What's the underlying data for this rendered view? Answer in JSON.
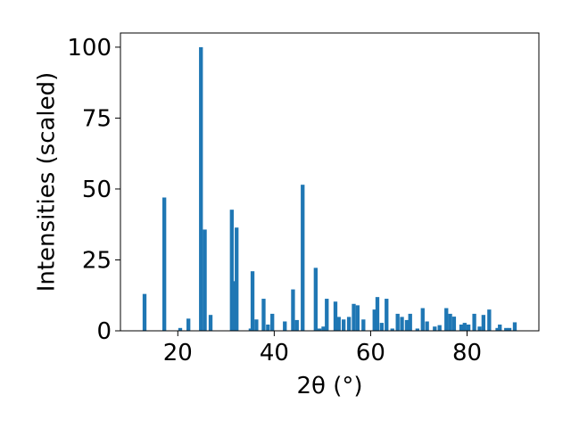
{
  "chart_data": {
    "type": "bar",
    "xlabel": "2θ (°)",
    "ylabel": "Intensities (scaled)",
    "xlim": [
      8.1,
      94.9
    ],
    "ylim": [
      0,
      105
    ],
    "xticks": [
      20,
      40,
      60,
      80
    ],
    "yticks": [
      0,
      25,
      50,
      75,
      100
    ],
    "bar_width_data": 0.8,
    "bar_color": "#1f77b4",
    "grid": false,
    "legend": "none",
    "x": [
      13.1,
      17.2,
      20.5,
      22.2,
      24.8,
      25.6,
      26.8,
      31.2,
      31.6,
      32.2,
      35.1,
      35.5,
      36.3,
      37.8,
      38.7,
      39.6,
      42.2,
      43.9,
      44.7,
      45.9,
      48.6,
      49.4,
      50.2,
      50.9,
      52.7,
      53.4,
      54.4,
      55.5,
      56.5,
      57.3,
      58.5,
      60.8,
      61.4,
      62.3,
      63.3,
      64.5,
      65.6,
      66.5,
      67.5,
      68.2,
      69.7,
      70.8,
      71.7,
      73.3,
      74.3,
      75.7,
      76.5,
      77.3,
      78.8,
      79.5,
      80.3,
      81.5,
      82.6,
      83.4,
      84.6,
      86.3,
      86.8,
      88.1,
      88.8,
      89.9
    ],
    "values": [
      13,
      47,
      1,
      4.3,
      100,
      35.7,
      5.6,
      42.7,
      17.5,
      36.4,
      0.8,
      21,
      4,
      11.3,
      2.2,
      6,
      3.3,
      14.6,
      3.8,
      51.5,
      22.2,
      0.8,
      1.5,
      11.3,
      10.3,
      4.9,
      4,
      4.9,
      9.5,
      9,
      4,
      7.5,
      11.9,
      2.8,
      11.3,
      0.8,
      6,
      4.9,
      3.8,
      6,
      0.8,
      8,
      3.3,
      1.5,
      2,
      8,
      6,
      5,
      2.2,
      2.8,
      2.2,
      6,
      1.5,
      5.6,
      7.5,
      1,
      2.2,
      1,
      1,
      3
    ]
  }
}
